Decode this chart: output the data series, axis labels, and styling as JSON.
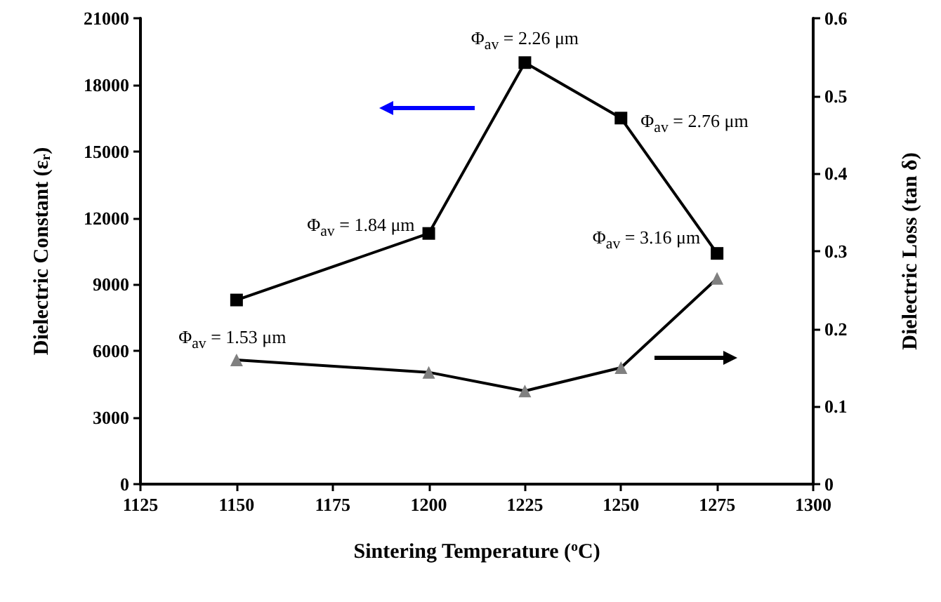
{
  "chart_data": {
    "type": "line",
    "xlabel": "Sintering Temperature ($^{o}$C)",
    "ylabel": "Dielectric Constant (ε$_{r}$)",
    "y2label": "Dielectric Loss (tan δ)",
    "x": [
      1150,
      1200,
      1225,
      1250,
      1275
    ],
    "series": [
      {
        "color": "#000000",
        "marker": "square",
        "values": [
          8300,
          11300,
          19000,
          16500,
          10400
        ]
      },
      {
        "color": "#808080",
        "marker": "triangle",
        "axis": "y2",
        "values": [
          0.16,
          0.144,
          0.12,
          0.15,
          0.265
        ]
      }
    ],
    "xlim": [
      1125,
      1300
    ],
    "xticks": [
      1125,
      1150,
      1175,
      1200,
      1225,
      1250,
      1275,
      1300
    ],
    "ylim": [
      0,
      21000
    ],
    "yticks": [
      0,
      3000,
      6000,
      9000,
      12000,
      15000,
      18000,
      21000
    ],
    "y2lim": [
      0,
      0.6
    ],
    "y2ticks": [
      0,
      0.1,
      0.2,
      0.3,
      0.4,
      0.5,
      0.6
    ],
    "annotations": [
      {
        "text": "Φ$_{av}$ = 1.53 μm",
        "x": 1150,
        "y": 8300
      },
      {
        "text": "Φ$_{av}$ = 1.84 μm",
        "x": 1200,
        "y": 11300
      },
      {
        "text": "Φ$_{av}$ = 2.26 μm",
        "x": 1225,
        "y": 19000
      },
      {
        "text": "Φ$_{av}$ = 2.76 μm",
        "x": 1250,
        "y": 16500
      },
      {
        "text": "Φ$_{av}$ = 3.16 μm",
        "x": 1275,
        "y": 10400
      }
    ],
    "grid": false,
    "line_style": "solid"
  }
}
